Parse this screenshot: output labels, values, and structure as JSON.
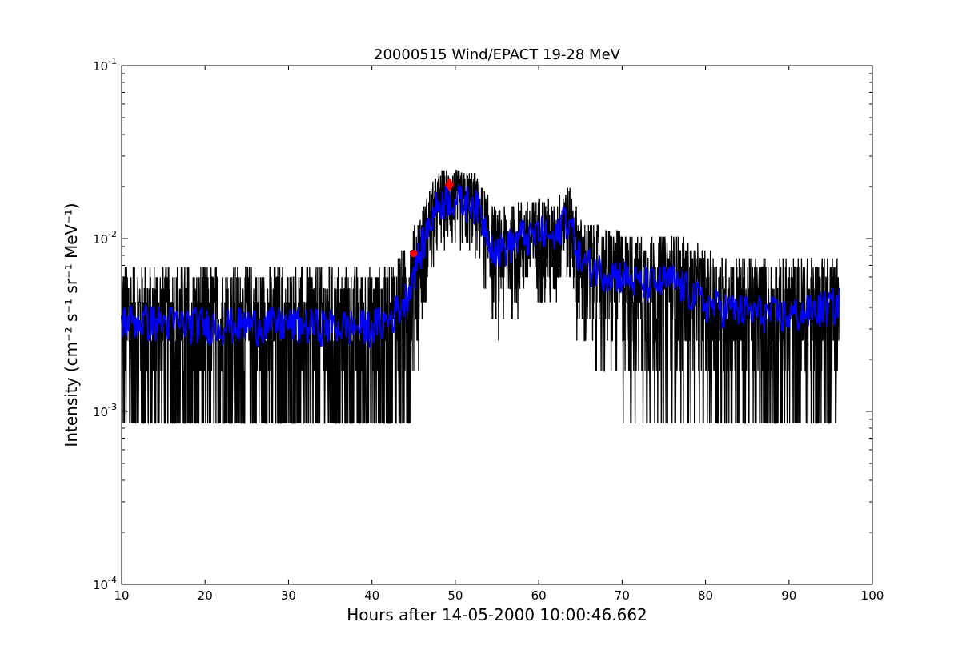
{
  "chart_data": {
    "type": "line",
    "title": "20000515 Wind/EPACT 19-28 MeV",
    "xlabel": "Hours after 14-05-2000 10:00:46.662",
    "ylabel": "Intensity (cm⁻² s⁻¹ sr⁻¹ MeV⁻¹)",
    "xlim": [
      10,
      100
    ],
    "ylim": [
      0.0001,
      0.1
    ],
    "yscale": "log",
    "grid": false,
    "xticks": [
      10,
      20,
      30,
      40,
      50,
      60,
      70,
      80,
      90,
      100
    ],
    "xtick_labels": [
      "10",
      "20",
      "30",
      "40",
      "50",
      "60",
      "70",
      "80",
      "90",
      "100"
    ],
    "yticks": [
      0.0001,
      0.001,
      0.01,
      0.1
    ],
    "ytick_labels": [
      {
        "base": "10",
        "exp": "-4"
      },
      {
        "base": "10",
        "exp": "-3"
      },
      {
        "base": "10",
        "exp": "-2"
      },
      {
        "base": "10",
        "exp": "-1"
      }
    ],
    "series": [
      {
        "color": "#000000",
        "kind": "raw",
        "x_range": [
          10,
          96
        ],
        "profile": [
          [
            10,
            0.0034
          ],
          [
            20,
            0.0032
          ],
          [
            30,
            0.0032
          ],
          [
            40,
            0.0031
          ],
          [
            42,
            0.0034
          ],
          [
            44,
            0.0045
          ],
          [
            45,
            0.0065
          ],
          [
            46,
            0.009
          ],
          [
            47,
            0.013
          ],
          [
            48,
            0.016
          ],
          [
            49,
            0.0175
          ],
          [
            50,
            0.017
          ],
          [
            51,
            0.016
          ],
          [
            52,
            0.017
          ],
          [
            53,
            0.014
          ],
          [
            54,
            0.0105
          ],
          [
            55,
            0.0085
          ],
          [
            56,
            0.009
          ],
          [
            57,
            0.0095
          ],
          [
            58,
            0.0105
          ],
          [
            59,
            0.01
          ],
          [
            60,
            0.011
          ],
          [
            61,
            0.0105
          ],
          [
            62,
            0.0095
          ],
          [
            63,
            0.014
          ],
          [
            64,
            0.0115
          ],
          [
            65,
            0.0075
          ],
          [
            66,
            0.007
          ],
          [
            68,
            0.0065
          ],
          [
            70,
            0.0062
          ],
          [
            72,
            0.0055
          ],
          [
            74,
            0.0055
          ],
          [
            76,
            0.0058
          ],
          [
            78,
            0.005
          ],
          [
            80,
            0.0042
          ],
          [
            85,
            0.0038
          ],
          [
            90,
            0.0036
          ],
          [
            96,
            0.0042
          ]
        ]
      },
      {
        "color": "#0000ff",
        "kind": "smoothed",
        "x_range": [
          10,
          96
        ],
        "profile": [
          [
            10,
            0.0034
          ],
          [
            20,
            0.0032
          ],
          [
            30,
            0.0032
          ],
          [
            40,
            0.0031
          ],
          [
            42,
            0.0034
          ],
          [
            44,
            0.0045
          ],
          [
            45,
            0.0065
          ],
          [
            46,
            0.009
          ],
          [
            47,
            0.013
          ],
          [
            48,
            0.016
          ],
          [
            49,
            0.0175
          ],
          [
            50,
            0.017
          ],
          [
            51,
            0.016
          ],
          [
            52,
            0.017
          ],
          [
            53,
            0.014
          ],
          [
            54,
            0.0105
          ],
          [
            55,
            0.0085
          ],
          [
            56,
            0.009
          ],
          [
            57,
            0.0095
          ],
          [
            58,
            0.0105
          ],
          [
            59,
            0.01
          ],
          [
            60,
            0.011
          ],
          [
            61,
            0.0105
          ],
          [
            62,
            0.0095
          ],
          [
            63,
            0.014
          ],
          [
            64,
            0.0115
          ],
          [
            65,
            0.0075
          ],
          [
            66,
            0.007
          ],
          [
            68,
            0.0065
          ],
          [
            70,
            0.0062
          ],
          [
            72,
            0.0055
          ],
          [
            74,
            0.0055
          ],
          [
            76,
            0.0058
          ],
          [
            78,
            0.005
          ],
          [
            80,
            0.0042
          ],
          [
            85,
            0.0038
          ],
          [
            90,
            0.0036
          ],
          [
            96,
            0.0042
          ]
        ]
      }
    ],
    "markers": [
      {
        "x": 45.0,
        "y": 0.0082,
        "color": "#ff0000",
        "shape": "circle"
      },
      {
        "x": 49.3,
        "y": 0.0205,
        "color": "#ff0000",
        "shape": "diamond"
      }
    ]
  }
}
